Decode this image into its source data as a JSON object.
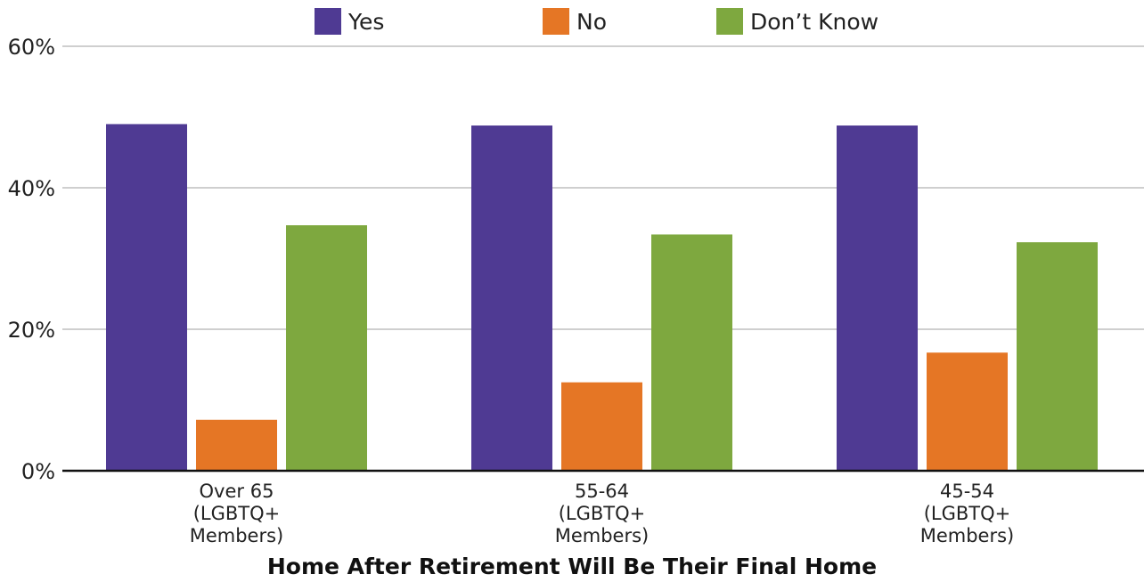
{
  "chart_data": {
    "type": "bar",
    "categories": [
      "Over 65\n(LGBTQ+\nMembers)",
      "55-64\n(LGBTQ+\nMembers)",
      "45-54\n(LGBTQ+\nMembers)"
    ],
    "series": [
      {
        "name": "Yes",
        "color": "#4F3A93",
        "values": [
          49,
          48.8,
          48.8
        ]
      },
      {
        "name": "No",
        "color": "#E57625",
        "values": [
          7.2,
          12.5,
          16.7
        ]
      },
      {
        "name": "Don’t Know",
        "color": "#7EA83F",
        "values": [
          34.7,
          33.4,
          32.3
        ]
      }
    ],
    "yticks": [
      "0%",
      "20%",
      "40%",
      "60%"
    ],
    "ylim": [
      0,
      60
    ],
    "xlabel": "Home After Retirement Will Be Their Final Home",
    "ylabel": "",
    "grid": true,
    "legend": "top-center"
  }
}
